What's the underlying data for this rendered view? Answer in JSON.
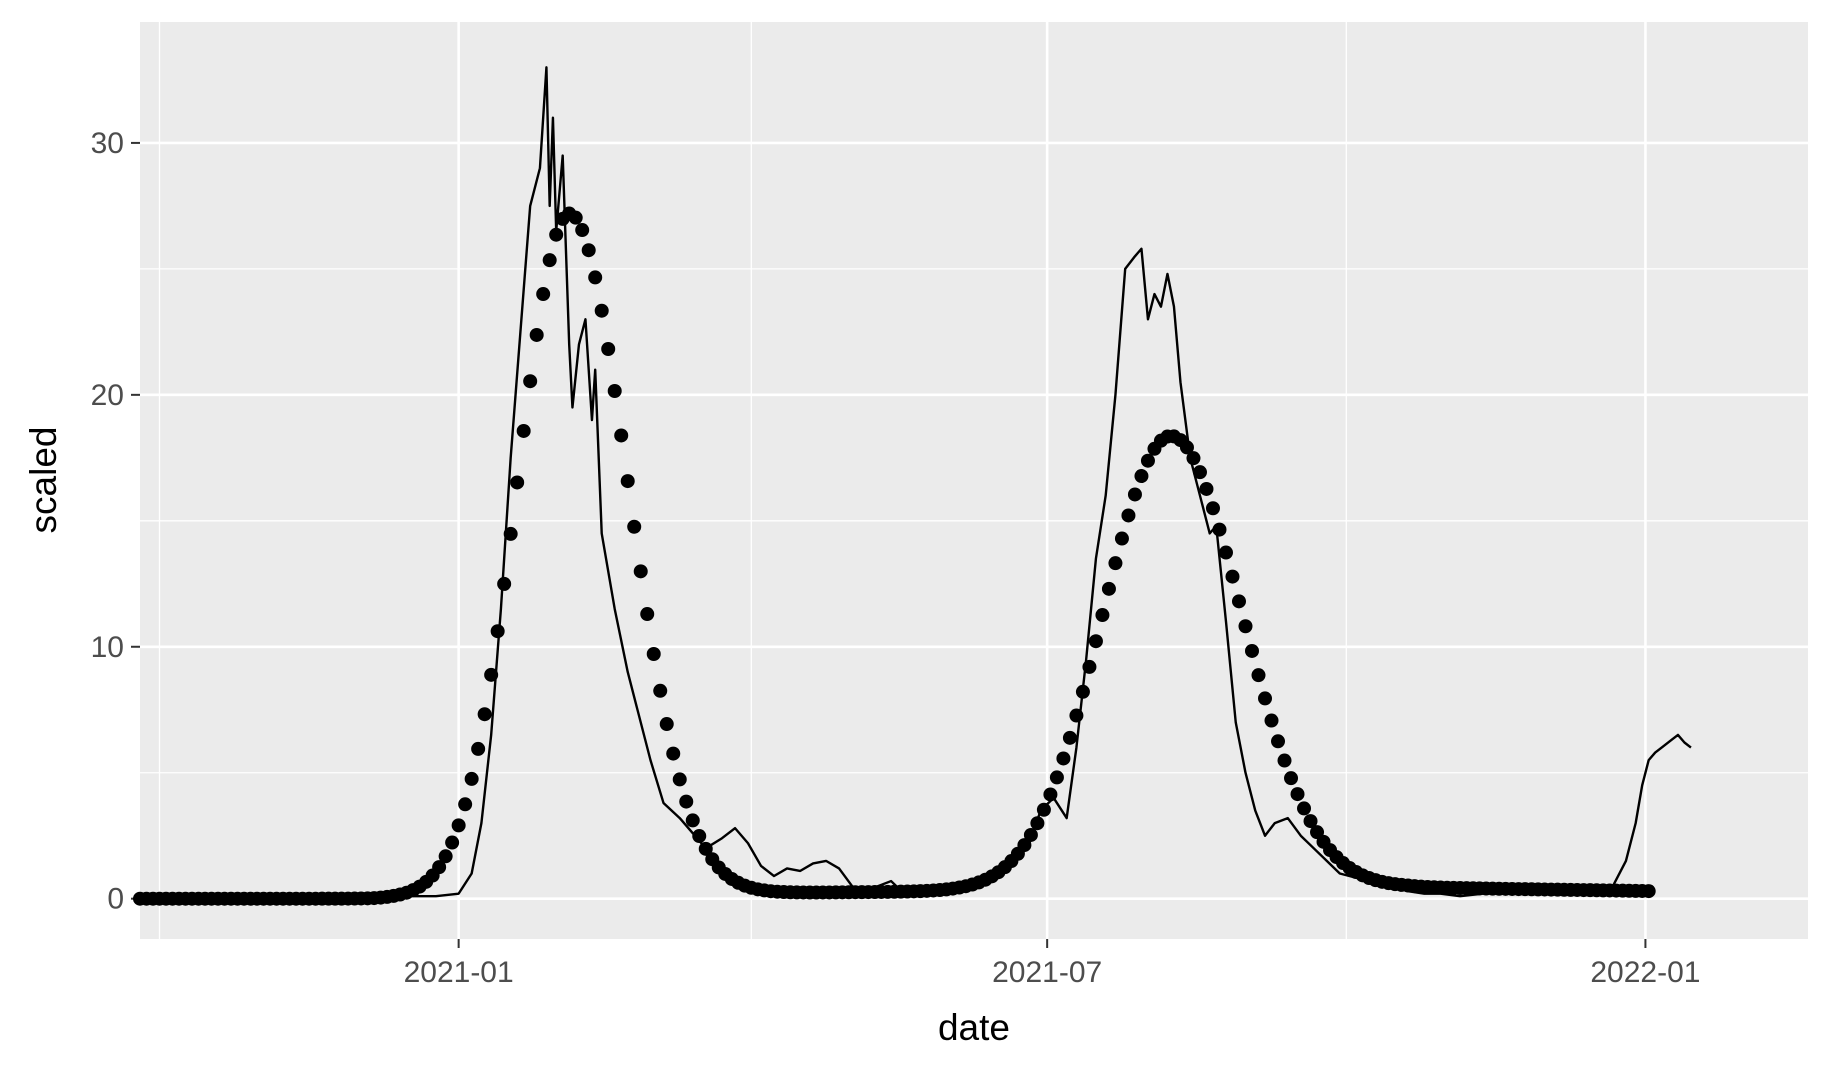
{
  "chart_data": {
    "type": "line",
    "title": "",
    "xlabel": "date",
    "ylabel": "scaled",
    "x_axis": {
      "type": "date",
      "range": [
        "2020-09-25",
        "2022-02-20"
      ],
      "ticks": [
        {
          "value": "2021-01-01",
          "label": "2021-01"
        },
        {
          "value": "2021-07-01",
          "label": "2021-07"
        },
        {
          "value": "2022-01-01",
          "label": "2022-01"
        }
      ],
      "minor_ticks": [
        "2020-10-01",
        "2021-04-01",
        "2021-10-01"
      ]
    },
    "y_axis": {
      "range": [
        -1.6,
        34.8
      ],
      "ticks": [
        {
          "value": 0,
          "label": "0"
        },
        {
          "value": 10,
          "label": "10"
        },
        {
          "value": 20,
          "label": "20"
        },
        {
          "value": 30,
          "label": "30"
        }
      ],
      "minor_ticks": [
        5,
        15,
        25
      ]
    },
    "grid": true,
    "legend": "none",
    "colors": {
      "panel": "#ebebeb",
      "grid": "#ffffff",
      "data": "#000000",
      "tick_text": "#4d4d4d"
    },
    "series": [
      {
        "style": "points",
        "x_start": "2020-09-25",
        "x_end": "2022-01-03",
        "step_days": 2,
        "peaks": [
          {
            "date": "2021-02-04",
            "height": 27.0,
            "rise_days": 16,
            "fall_days": 18
          },
          {
            "date": "2021-08-08",
            "height": 18.0,
            "rise_days": 21,
            "fall_days": 22
          }
        ],
        "floor": [
          {
            "date": "2021-03-15",
            "value": 0.2
          },
          {
            "date": "2021-10-20",
            "value": 0.45
          },
          {
            "date": "2022-01-03",
            "value": 0.3
          }
        ]
      },
      {
        "style": "line",
        "points": [
          [
            "2020-09-25",
            0.1
          ],
          [
            "2020-10-01",
            0.0
          ],
          [
            "2020-11-01",
            0.0
          ],
          [
            "2020-12-01",
            0.05
          ],
          [
            "2020-12-15",
            0.1
          ],
          [
            "2020-12-25",
            0.1
          ],
          [
            "2021-01-01",
            0.2
          ],
          [
            "2021-01-05",
            1.0
          ],
          [
            "2021-01-08",
            3.0
          ],
          [
            "2021-01-11",
            6.5
          ],
          [
            "2021-01-14",
            11.5
          ],
          [
            "2021-01-17",
            17.5
          ],
          [
            "2021-01-20",
            22.5
          ],
          [
            "2021-01-23",
            27.5
          ],
          [
            "2021-01-26",
            29.0
          ],
          [
            "2021-01-28",
            33.0
          ],
          [
            "2021-01-29",
            27.5
          ],
          [
            "2021-01-30",
            31.0
          ],
          [
            "2021-01-31",
            26.5
          ],
          [
            "2021-02-02",
            29.5
          ],
          [
            "2021-02-04",
            22.0
          ],
          [
            "2021-02-05",
            19.5
          ],
          [
            "2021-02-07",
            22.0
          ],
          [
            "2021-02-09",
            23.0
          ],
          [
            "2021-02-11",
            19.0
          ],
          [
            "2021-02-12",
            21.0
          ],
          [
            "2021-02-14",
            14.5
          ],
          [
            "2021-02-18",
            11.5
          ],
          [
            "2021-02-22",
            9.0
          ],
          [
            "2021-02-25",
            7.5
          ],
          [
            "2021-03-01",
            5.5
          ],
          [
            "2021-03-05",
            3.8
          ],
          [
            "2021-03-10",
            3.2
          ],
          [
            "2021-03-14",
            2.6
          ],
          [
            "2021-03-18",
            2.0
          ],
          [
            "2021-03-23",
            2.4
          ],
          [
            "2021-03-27",
            2.8
          ],
          [
            "2021-03-31",
            2.2
          ],
          [
            "2021-04-04",
            1.3
          ],
          [
            "2021-04-08",
            0.9
          ],
          [
            "2021-04-12",
            1.2
          ],
          [
            "2021-04-16",
            1.1
          ],
          [
            "2021-04-20",
            1.4
          ],
          [
            "2021-04-24",
            1.5
          ],
          [
            "2021-04-28",
            1.2
          ],
          [
            "2021-05-02",
            0.5
          ],
          [
            "2021-05-06",
            0.3
          ],
          [
            "2021-05-10",
            0.5
          ],
          [
            "2021-05-14",
            0.7
          ],
          [
            "2021-05-18",
            0.2
          ],
          [
            "2021-05-25",
            0.2
          ],
          [
            "2021-06-01",
            0.3
          ],
          [
            "2021-06-08",
            0.4
          ],
          [
            "2021-06-15",
            0.8
          ],
          [
            "2021-06-20",
            1.5
          ],
          [
            "2021-06-25",
            2.0
          ],
          [
            "2021-06-29",
            3.5
          ],
          [
            "2021-07-03",
            4.0
          ],
          [
            "2021-07-07",
            3.2
          ],
          [
            "2021-07-10",
            6.0
          ],
          [
            "2021-07-13",
            9.5
          ],
          [
            "2021-07-16",
            13.5
          ],
          [
            "2021-07-19",
            16.0
          ],
          [
            "2021-07-22",
            20.0
          ],
          [
            "2021-07-25",
            25.0
          ],
          [
            "2021-07-28",
            25.5
          ],
          [
            "2021-07-30",
            25.8
          ],
          [
            "2021-08-01",
            23.0
          ],
          [
            "2021-08-03",
            24.0
          ],
          [
            "2021-08-05",
            23.5
          ],
          [
            "2021-08-07",
            24.8
          ],
          [
            "2021-08-09",
            23.5
          ],
          [
            "2021-08-11",
            20.5
          ],
          [
            "2021-08-14",
            17.5
          ],
          [
            "2021-08-17",
            16.0
          ],
          [
            "2021-08-20",
            14.5
          ],
          [
            "2021-08-22",
            14.8
          ],
          [
            "2021-08-25",
            11.0
          ],
          [
            "2021-08-28",
            7.0
          ],
          [
            "2021-08-31",
            5.0
          ],
          [
            "2021-09-03",
            3.5
          ],
          [
            "2021-09-06",
            2.5
          ],
          [
            "2021-09-09",
            3.0
          ],
          [
            "2021-09-13",
            3.2
          ],
          [
            "2021-09-17",
            2.5
          ],
          [
            "2021-09-21",
            2.0
          ],
          [
            "2021-09-25",
            1.5
          ],
          [
            "2021-09-29",
            1.0
          ],
          [
            "2021-10-05",
            0.8
          ],
          [
            "2021-10-10",
            0.6
          ],
          [
            "2021-10-15",
            0.5
          ],
          [
            "2021-10-20",
            0.3
          ],
          [
            "2021-10-25",
            0.2
          ],
          [
            "2021-10-30",
            0.2
          ],
          [
            "2021-11-05",
            0.1
          ],
          [
            "2021-11-12",
            0.2
          ],
          [
            "2021-11-19",
            0.3
          ],
          [
            "2021-11-26",
            0.3
          ],
          [
            "2021-12-03",
            0.2
          ],
          [
            "2021-12-10",
            0.3
          ],
          [
            "2021-12-17",
            0.2
          ],
          [
            "2021-12-22",
            0.5
          ],
          [
            "2021-12-26",
            1.5
          ],
          [
            "2021-12-29",
            3.0
          ],
          [
            "2021-12-31",
            4.5
          ],
          [
            "2022-01-02",
            5.5
          ],
          [
            "2022-01-04",
            5.8
          ],
          [
            "2022-01-06",
            6.0
          ],
          [
            "2022-01-09",
            6.3
          ],
          [
            "2022-01-11",
            6.5
          ],
          [
            "2022-01-13",
            6.2
          ],
          [
            "2022-01-15",
            6.0
          ]
        ]
      }
    ]
  }
}
